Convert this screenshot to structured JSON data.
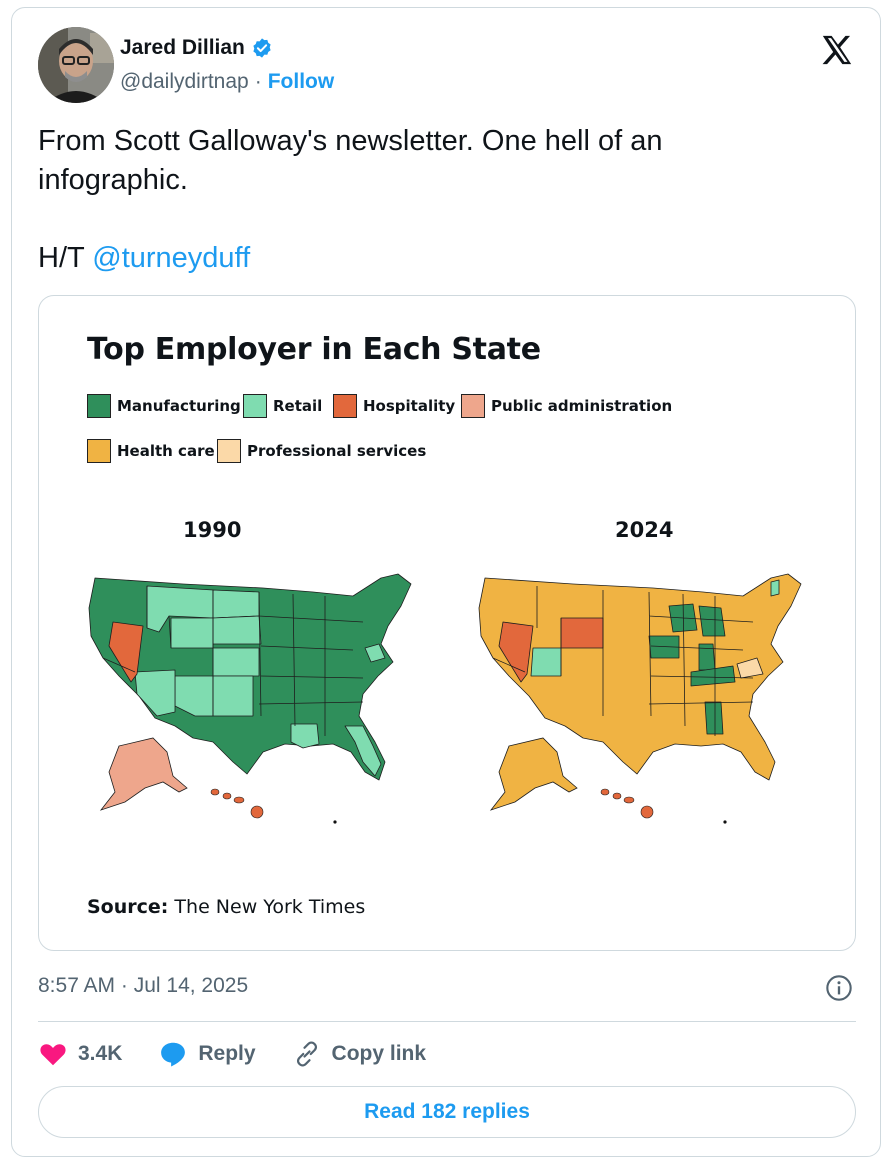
{
  "author": {
    "name": "Jared Dillian",
    "handle": "@dailydirtnap",
    "separator": "·",
    "follow_label": "Follow"
  },
  "tweet": {
    "line1": "From Scott Galloway's newsletter. One hell of an infographic.",
    "ht_prefix": "H/T ",
    "mention": "@turneyduff"
  },
  "infographic": {
    "title": "Top Employer in Each State",
    "legend": [
      {
        "label": "Manufacturing",
        "color": "#2f8f5b"
      },
      {
        "label": "Retail",
        "color": "#7fdcb0"
      },
      {
        "label": "Hospitality",
        "color": "#e2683c"
      },
      {
        "label": "Public administration",
        "color": "#eea68c"
      },
      {
        "label": "Health care",
        "color": "#f0b343"
      },
      {
        "label": "Professional services",
        "color": "#fbd9a8"
      }
    ],
    "year_left": "1990",
    "year_right": "2024",
    "source_label": "Source:",
    "source_text": " The New York Times"
  },
  "meta": {
    "timestamp": "8:57 AM · Jul 14, 2025"
  },
  "actions": {
    "likes": "3.4K",
    "reply": "Reply",
    "copy_link": "Copy link",
    "read_replies": "Read 182 replies"
  },
  "icons": [
    "avatar",
    "verified-badge-icon",
    "x-logo-icon",
    "info-icon",
    "heart-icon",
    "reply-icon",
    "link-icon"
  ]
}
